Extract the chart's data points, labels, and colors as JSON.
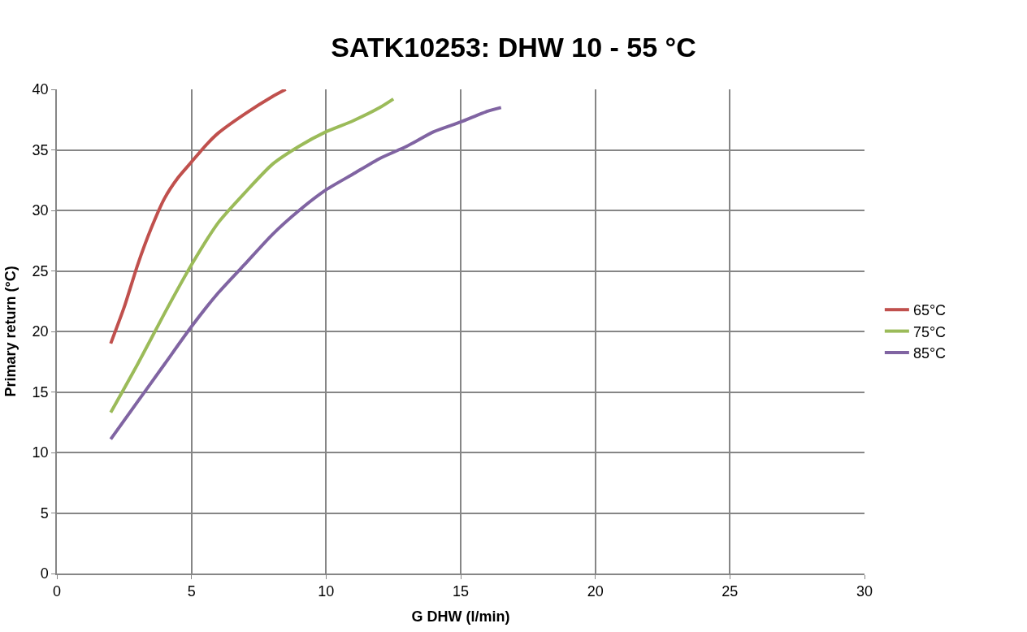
{
  "chart_data": {
    "type": "line",
    "title": "SATK10253: DHW 10 - 55 °C",
    "xlabel": "G DHW (l/min)",
    "ylabel": "Primary return (°C)",
    "xlim": [
      0,
      30
    ],
    "xticks": [
      0,
      5,
      10,
      15,
      20,
      25,
      30
    ],
    "ylim": [
      0,
      40
    ],
    "yticks": [
      0,
      5,
      10,
      15,
      20,
      25,
      30,
      35,
      40
    ],
    "grid": true,
    "legend": "right",
    "series": [
      {
        "name": "65°C",
        "color": "#c0504d",
        "x": [
          2,
          2.5,
          3,
          3.5,
          4,
          4.5,
          5,
          5.5,
          6,
          7,
          8,
          8.5
        ],
        "values": [
          19,
          22,
          25.5,
          28.5,
          31,
          32.7,
          34,
          35.3,
          36.4,
          38,
          39.4,
          40
        ]
      },
      {
        "name": "75°C",
        "color": "#9bbb59",
        "x": [
          2,
          3,
          4,
          5,
          6,
          7,
          8,
          9,
          10,
          11,
          12,
          12.5
        ],
        "values": [
          13.3,
          17.3,
          21.5,
          25.5,
          29,
          31.5,
          33.8,
          35.3,
          36.5,
          37.4,
          38.5,
          39.2
        ]
      },
      {
        "name": "85°C",
        "color": "#8064a2",
        "x": [
          2,
          3,
          4,
          5,
          6,
          7,
          8,
          9,
          10,
          11,
          12,
          13,
          14,
          15,
          16,
          16.5
        ],
        "values": [
          11.1,
          14.2,
          17.3,
          20.4,
          23.2,
          25.6,
          28,
          30,
          31.7,
          33,
          34.3,
          35.3,
          36.5,
          37.3,
          38.2,
          38.5
        ]
      }
    ]
  }
}
